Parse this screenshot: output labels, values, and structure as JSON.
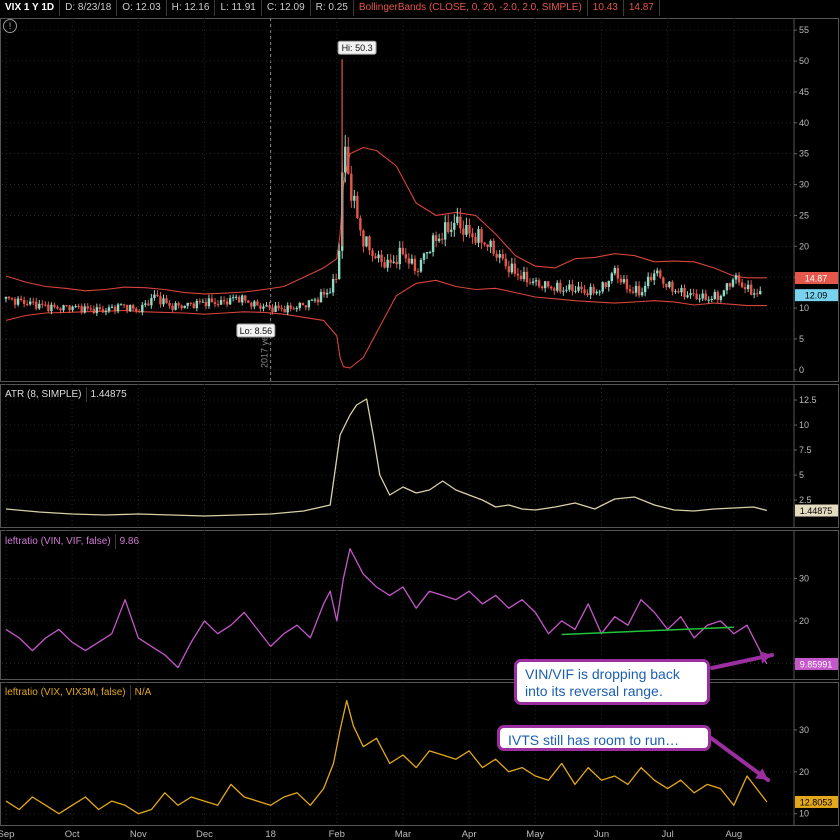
{
  "header": {
    "symbol": "VIX 1 Y 1D",
    "date": "D: 8/23/18",
    "open": "O: 12.03",
    "high": "H: 12.16",
    "low": "L: 11.91",
    "close": "C: 12.09",
    "range": "R: 0.25",
    "study": "BollingerBands (CLOSE, 0, 20, -2.0, 2.0, SIMPLE)",
    "study_lower": "10.43",
    "study_upper": "14.87",
    "alert_glyph": "!"
  },
  "colors": {
    "up": "#8fd9c6",
    "down": "#e5564b",
    "bands": "#d9433a",
    "atr": "#d8cfa6",
    "vin_vif": "#c457c9",
    "vix_vix3m": "#e3a81b",
    "trendline": "#20c43a",
    "callout_border": "#9c2fa0",
    "callout_text": "#1a5fb0"
  },
  "chart_data": [
    {
      "type": "candlestick",
      "title": "VIX 1 Y 1D",
      "ylim": [
        -1,
        56
      ],
      "yticks": [
        "0",
        "5",
        "10",
        "15",
        "20",
        "25",
        "30",
        "35",
        "40",
        "45",
        "50",
        "55"
      ],
      "x_ticks": [
        "Sep",
        "Oct",
        "Nov",
        "Dec",
        "18",
        "Feb",
        "Mar",
        "Apr",
        "May",
        "Jun",
        "Jul",
        "Aug"
      ],
      "year_divider_label": "2017 year",
      "series": [
        {
          "name": "BollingerBands (CLOSE, 0, 20, -2.0, 2.0, SIMPLE) upper",
          "x": [
            0,
            0.3,
            0.6,
            0.9,
            1.2,
            1.5,
            1.8,
            2.1,
            2.4,
            2.7,
            3.0,
            3.3,
            3.6,
            3.9,
            4.2,
            4.5,
            4.8,
            5.0,
            5.05,
            5.1,
            5.2,
            5.4,
            5.6,
            5.9,
            6.2,
            6.5,
            6.8,
            7.1,
            7.4,
            7.7,
            8.0,
            8.3,
            8.6,
            8.9,
            9.2,
            9.5,
            9.8,
            10.1,
            10.4,
            10.7,
            11.0,
            11.2,
            11.5
          ],
          "values": [
            15.2,
            14.2,
            13.5,
            13.2,
            12.8,
            13.0,
            13.4,
            13.3,
            13.0,
            12.5,
            12.3,
            12.4,
            12.6,
            13.0,
            13.5,
            15.0,
            16.5,
            18.0,
            22.0,
            30.0,
            35.0,
            36.0,
            35.5,
            33.0,
            27.0,
            25.0,
            25.5,
            25.0,
            22.0,
            18.5,
            16.8,
            16.5,
            18.0,
            18.2,
            18.8,
            18.5,
            17.5,
            17.6,
            17.5,
            16.5,
            15.2,
            14.9,
            14.9
          ]
        },
        {
          "name": "BollingerBands (CLOSE, 0, 20, -2.0, 2.0, SIMPLE) lower",
          "x": [
            0,
            0.3,
            0.6,
            0.9,
            1.2,
            1.5,
            1.8,
            2.1,
            2.4,
            2.7,
            3.0,
            3.3,
            3.6,
            3.9,
            4.2,
            4.5,
            4.8,
            5.0,
            5.05,
            5.1,
            5.2,
            5.4,
            5.6,
            5.9,
            6.2,
            6.5,
            6.8,
            7.1,
            7.4,
            7.7,
            8.0,
            8.3,
            8.6,
            8.9,
            9.2,
            9.5,
            9.8,
            10.1,
            10.4,
            10.7,
            11.0,
            11.2,
            11.5
          ],
          "values": [
            8.0,
            8.8,
            9.2,
            9.3,
            9.4,
            9.5,
            9.6,
            9.4,
            9.3,
            9.2,
            9.0,
            9.2,
            9.4,
            9.3,
            9.0,
            8.5,
            8.0,
            5.5,
            2.0,
            0.5,
            0.3,
            2.0,
            6.0,
            12.0,
            14.0,
            14.5,
            13.5,
            13.0,
            13.2,
            12.5,
            11.8,
            11.5,
            11.2,
            11.0,
            10.8,
            11.0,
            11.2,
            11.0,
            10.5,
            10.8,
            10.6,
            10.4,
            10.4
          ]
        },
        {
          "name": "VIX close",
          "x": [
            0,
            0.25,
            0.5,
            0.75,
            1.0,
            1.25,
            1.5,
            1.75,
            2.0,
            2.25,
            2.5,
            2.75,
            3.0,
            3.25,
            3.5,
            3.75,
            4.0,
            4.25,
            4.5,
            4.75,
            4.9,
            5.0,
            5.05,
            5.1,
            5.2,
            5.3,
            5.4,
            5.6,
            5.8,
            6.0,
            6.2,
            6.4,
            6.6,
            6.8,
            7.0,
            7.2,
            7.4,
            7.6,
            7.8,
            8.0,
            8.2,
            8.4,
            8.6,
            8.8,
            9.0,
            9.2,
            9.4,
            9.6,
            9.8,
            10.0,
            10.2,
            10.4,
            10.6,
            10.8,
            11.0,
            11.2,
            11.4
          ],
          "values": [
            11.5,
            11.0,
            10.5,
            10.0,
            10.2,
            9.8,
            9.6,
            10.5,
            9.5,
            12.0,
            10.2,
            10.5,
            11.0,
            10.8,
            11.8,
            10.5,
            10.0,
            9.8,
            10.5,
            11.8,
            13.0,
            15.0,
            22.0,
            37.0,
            30.0,
            25.0,
            21.0,
            18.0,
            17.0,
            19.0,
            16.0,
            20.0,
            22.0,
            24.0,
            22.0,
            21.0,
            19.0,
            16.5,
            15.0,
            14.0,
            13.5,
            13.0,
            13.2,
            12.5,
            13.0,
            16.0,
            13.0,
            12.5,
            16.0,
            13.5,
            12.5,
            12.0,
            11.5,
            12.0,
            15.0,
            13.0,
            12.09
          ]
        }
      ],
      "annotations": [
        {
          "label": "Hi: 50.3",
          "x": 5.08,
          "y": 50.3
        },
        {
          "label": "Lo: 8.56",
          "x": 3.55,
          "y": 8.56
        }
      ],
      "last_values": [
        "14.87",
        "12.09"
      ]
    },
    {
      "type": "line",
      "title": "ATR (8, SIMPLE)",
      "value_label": "1.44875",
      "ylim": [
        0.3,
        13.5
      ],
      "yticks": [
        "2.5",
        "5",
        "7.5",
        "10",
        "12.5"
      ],
      "series": [
        {
          "name": "ATR (8, SIMPLE)",
          "x": [
            0,
            0.5,
            1.0,
            1.5,
            2.0,
            2.5,
            3.0,
            3.5,
            4.0,
            4.5,
            4.9,
            5.05,
            5.2,
            5.3,
            5.45,
            5.55,
            5.65,
            5.8,
            6.0,
            6.2,
            6.4,
            6.6,
            6.8,
            7.0,
            7.2,
            7.4,
            7.6,
            7.8,
            8.0,
            8.3,
            8.6,
            8.9,
            9.2,
            9.5,
            9.8,
            10.1,
            10.4,
            10.7,
            11.0,
            11.3,
            11.5
          ],
          "values": [
            1.6,
            1.3,
            1.1,
            1.0,
            1.1,
            1.0,
            0.9,
            1.0,
            1.1,
            1.4,
            2.0,
            9.0,
            11.0,
            12.0,
            12.6,
            9.0,
            5.0,
            3.0,
            3.8,
            3.2,
            3.5,
            4.4,
            3.5,
            3.0,
            2.5,
            1.8,
            2.0,
            1.6,
            1.5,
            1.8,
            2.2,
            1.6,
            2.6,
            2.8,
            2.0,
            1.5,
            1.4,
            1.6,
            1.7,
            1.8,
            1.44875
          ]
        }
      ]
    },
    {
      "type": "line",
      "title": "leftratio (VIN, VIF, false)",
      "value_label": "9.86",
      "last_value": "9.85991",
      "ylim": [
        7.5,
        40
      ],
      "yticks": [
        "10",
        "20",
        "30"
      ],
      "series": [
        {
          "name": "leftratio (VIN, VIF, false)",
          "x": [
            0,
            0.2,
            0.4,
            0.6,
            0.8,
            1.0,
            1.2,
            1.4,
            1.6,
            1.8,
            2.0,
            2.2,
            2.4,
            2.6,
            2.8,
            3.0,
            3.2,
            3.4,
            3.6,
            3.8,
            4.0,
            4.2,
            4.4,
            4.6,
            4.8,
            4.9,
            5.0,
            5.1,
            5.2,
            5.4,
            5.6,
            5.8,
            6.0,
            6.2,
            6.4,
            6.6,
            6.8,
            7.0,
            7.2,
            7.4,
            7.6,
            7.8,
            8.0,
            8.2,
            8.4,
            8.6,
            8.8,
            9.0,
            9.2,
            9.4,
            9.6,
            9.8,
            10.0,
            10.2,
            10.4,
            10.6,
            10.8,
            11.0,
            11.2,
            11.5
          ],
          "values": [
            18.0,
            16.0,
            13.0,
            16.0,
            18.0,
            15.0,
            13.0,
            15.0,
            17.0,
            25.0,
            16.0,
            14.0,
            12.0,
            9.0,
            15.0,
            20.0,
            17.0,
            19.0,
            22.0,
            18.0,
            14.0,
            17.0,
            19.0,
            16.0,
            24.0,
            27.0,
            20.0,
            30.0,
            37.0,
            31.0,
            28.0,
            26.0,
            28.0,
            23.0,
            27.0,
            26.0,
            25.0,
            27.0,
            24.0,
            26.0,
            23.0,
            25.0,
            22.0,
            17.0,
            20.0,
            18.0,
            24.0,
            17.0,
            21.0,
            19.0,
            25.0,
            22.0,
            18.0,
            21.0,
            16.0,
            19.0,
            20.0,
            17.0,
            19.0,
            9.86
          ]
        },
        {
          "name": "trendline",
          "x": [
            8.4,
            11.0
          ],
          "values": [
            16.8,
            18.5
          ]
        }
      ],
      "callout": "VIN/VIF is dropping back\ninto its reversal range."
    },
    {
      "type": "line",
      "title": "leftratio (VIX, VIX3M, false)",
      "value_label": "N/A",
      "last_value": "12.8053",
      "ylim": [
        8.5,
        40
      ],
      "yticks": [
        "10",
        "20",
        "30"
      ],
      "series": [
        {
          "name": "leftratio (VIX, VIX3M, false)",
          "x": [
            0,
            0.2,
            0.4,
            0.6,
            0.8,
            1.0,
            1.2,
            1.4,
            1.6,
            1.8,
            2.0,
            2.2,
            2.4,
            2.6,
            2.8,
            3.0,
            3.2,
            3.4,
            3.6,
            3.8,
            4.0,
            4.2,
            4.4,
            4.6,
            4.8,
            4.95,
            5.05,
            5.15,
            5.25,
            5.4,
            5.6,
            5.8,
            6.0,
            6.2,
            6.4,
            6.6,
            6.8,
            7.0,
            7.2,
            7.4,
            7.6,
            7.8,
            8.0,
            8.2,
            8.4,
            8.6,
            8.8,
            9.0,
            9.2,
            9.4,
            9.6,
            9.8,
            10.0,
            10.2,
            10.4,
            10.6,
            10.8,
            11.0,
            11.2,
            11.5
          ],
          "values": [
            13.0,
            11.0,
            14.0,
            12.0,
            10.0,
            12.0,
            14.0,
            11.0,
            13.0,
            12.0,
            10.0,
            11.0,
            15.0,
            12.0,
            14.0,
            13.0,
            12.0,
            17.0,
            14.0,
            13.0,
            12.0,
            14.0,
            15.0,
            12.0,
            16.0,
            22.0,
            30.0,
            37.0,
            31.0,
            26.0,
            28.0,
            22.0,
            24.0,
            21.0,
            25.0,
            24.0,
            23.0,
            25.0,
            21.0,
            23.0,
            20.0,
            21.0,
            19.0,
            18.0,
            22.0,
            17.0,
            21.0,
            18.0,
            19.0,
            17.0,
            21.0,
            18.0,
            16.0,
            18.0,
            15.0,
            17.0,
            16.0,
            12.0,
            19.0,
            12.8053
          ]
        }
      ],
      "callout": "IVTS still has room to run…"
    }
  ]
}
